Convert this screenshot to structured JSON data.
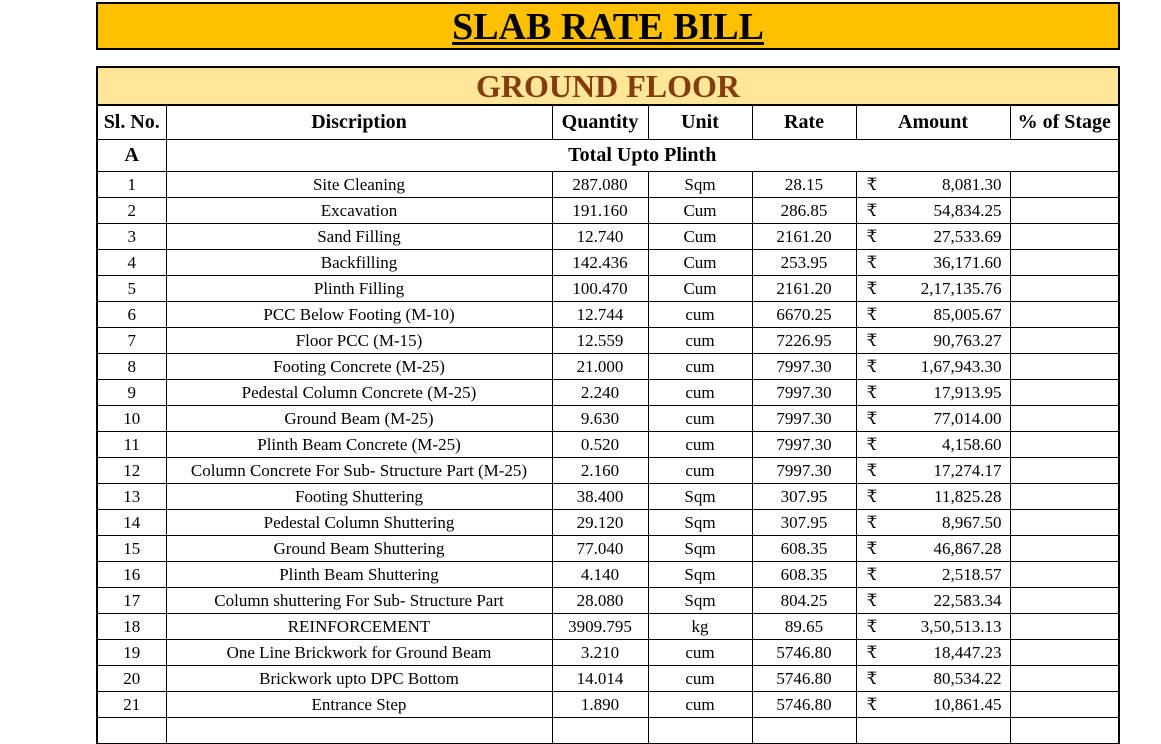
{
  "title": "SLAB RATE BILL",
  "section_title": "GROUND FLOOR",
  "currency_symbol": "₹",
  "headers": {
    "sl_no": "Sl. No.",
    "description": "Discription",
    "quantity": "Quantity",
    "unit": "Unit",
    "rate": "Rate",
    "amount": "Amount",
    "stage": "% of Stage"
  },
  "group": {
    "code": "A",
    "title": "Total Upto Plinth"
  },
  "rows": [
    {
      "sl": "1",
      "desc": "Site Cleaning",
      "qty": "287.080",
      "unit": "Sqm",
      "rate": "28.15",
      "amount": "8,081.30"
    },
    {
      "sl": "2",
      "desc": "Excavation",
      "qty": "191.160",
      "unit": "Cum",
      "rate": "286.85",
      "amount": "54,834.25"
    },
    {
      "sl": "3",
      "desc": "Sand Filling",
      "qty": "12.740",
      "unit": "Cum",
      "rate": "2161.20",
      "amount": "27,533.69"
    },
    {
      "sl": "4",
      "desc": "Backfilling",
      "qty": "142.436",
      "unit": "Cum",
      "rate": "253.95",
      "amount": "36,171.60"
    },
    {
      "sl": "5",
      "desc": "Plinth Filling",
      "qty": "100.470",
      "unit": "Cum",
      "rate": "2161.20",
      "amount": "2,17,135.76"
    },
    {
      "sl": "6",
      "desc": "PCC Below Footing (M-10)",
      "qty": "12.744",
      "unit": "cum",
      "rate": "6670.25",
      "amount": "85,005.67"
    },
    {
      "sl": "7",
      "desc": "Floor PCC (M-15)",
      "qty": "12.559",
      "unit": "cum",
      "rate": "7226.95",
      "amount": "90,763.27"
    },
    {
      "sl": "8",
      "desc": "Footing Concrete (M-25)",
      "qty": "21.000",
      "unit": "cum",
      "rate": "7997.30",
      "amount": "1,67,943.30"
    },
    {
      "sl": "9",
      "desc": "Pedestal Column Concrete (M-25)",
      "qty": "2.240",
      "unit": "cum",
      "rate": "7997.30",
      "amount": "17,913.95"
    },
    {
      "sl": "10",
      "desc": "Ground Beam (M-25)",
      "qty": "9.630",
      "unit": "cum",
      "rate": "7997.30",
      "amount": "77,014.00"
    },
    {
      "sl": "11",
      "desc": "Plinth Beam Concrete (M-25)",
      "qty": "0.520",
      "unit": "cum",
      "rate": "7997.30",
      "amount": "4,158.60"
    },
    {
      "sl": "12",
      "desc": "Column Concrete For Sub- Structure Part (M-25)",
      "qty": "2.160",
      "unit": "cum",
      "rate": "7997.30",
      "amount": "17,274.17"
    },
    {
      "sl": "13",
      "desc": "Footing Shuttering",
      "qty": "38.400",
      "unit": "Sqm",
      "rate": "307.95",
      "amount": "11,825.28"
    },
    {
      "sl": "14",
      "desc": "Pedestal Column Shuttering",
      "qty": "29.120",
      "unit": "Sqm",
      "rate": "307.95",
      "amount": "8,967.50"
    },
    {
      "sl": "15",
      "desc": "Ground Beam Shuttering",
      "qty": "77.040",
      "unit": "Sqm",
      "rate": "608.35",
      "amount": "46,867.28"
    },
    {
      "sl": "16",
      "desc": "Plinth Beam Shuttering",
      "qty": "4.140",
      "unit": "Sqm",
      "rate": "608.35",
      "amount": "2,518.57"
    },
    {
      "sl": "17",
      "desc": "Column shuttering For Sub- Structure Part",
      "qty": "28.080",
      "unit": "Sqm",
      "rate": "804.25",
      "amount": "22,583.34"
    },
    {
      "sl": "18",
      "desc": "REINFORCEMENT",
      "qty": "3909.795",
      "unit": "kg",
      "rate": "89.65",
      "amount": "3,50,513.13"
    },
    {
      "sl": "19",
      "desc": "One Line Brickwork for Ground Beam",
      "qty": "3.210",
      "unit": "cum",
      "rate": "5746.80",
      "amount": "18,447.23"
    },
    {
      "sl": "20",
      "desc": "Brickwork upto DPC Bottom",
      "qty": "14.014",
      "unit": "cum",
      "rate": "5746.80",
      "amount": "80,534.22"
    },
    {
      "sl": "21",
      "desc": "Entrance Step",
      "qty": "1.890",
      "unit": "cum",
      "rate": "5746.80",
      "amount": "10,861.45"
    },
    {
      "sl": "",
      "desc": "",
      "qty": "",
      "unit": "",
      "rate": "",
      "amount": ""
    }
  ]
}
